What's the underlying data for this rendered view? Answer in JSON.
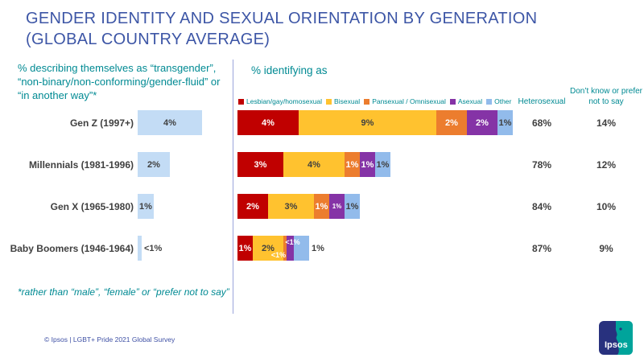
{
  "title": {
    "line1": "GENDER IDENTITY AND SEXUAL ORIENTATION BY GENERATION",
    "line2": "(GLOBAL COUNTRY AVERAGE)"
  },
  "left_chart": {
    "heading": "% describing themselves as “transgender”, “non-binary/non-conforming/gender-fluid” or “in another way”*",
    "footnote": "*rather than “male”, “female” or “prefer not to say”"
  },
  "right_chart": {
    "heading": "% identifying as",
    "series": [
      {
        "key": "lgh",
        "name": "Lesbian/gay/homosexual",
        "color": "#C00000"
      },
      {
        "key": "bi",
        "name": "Bisexual",
        "color": "#FFC22F"
      },
      {
        "key": "pan",
        "name": "Pansexual / Omnisexual",
        "color": "#EC7D2E"
      },
      {
        "key": "ace",
        "name": "Asexual",
        "color": "#8533A6"
      },
      {
        "key": "other",
        "name": "Other",
        "color": "#92BBEB"
      }
    ],
    "columns": [
      {
        "header": "Heterosexual"
      },
      {
        "header": "Don’t know or prefer not to say"
      }
    ],
    "rows": [
      {
        "name": "Gen Z (1997+)",
        "trans_pct": 4,
        "trans_label": "4%",
        "trans_label_outside": false,
        "segments": [
          {
            "series": "lgh",
            "value": 4,
            "label": "4%",
            "text": "light"
          },
          {
            "series": "bi",
            "value": 9,
            "label": "9%",
            "text": "dark"
          },
          {
            "series": "pan",
            "value": 2,
            "label": "2%",
            "text": "light"
          },
          {
            "series": "ace",
            "value": 2,
            "label": "2%",
            "text": "light"
          },
          {
            "series": "other",
            "value": 1,
            "label": "1%",
            "text": "dark"
          }
        ],
        "heterosexual": "68%",
        "dont_know": "14%"
      },
      {
        "name": "Millennials (1981-1996)",
        "trans_pct": 2,
        "trans_label": "2%",
        "trans_label_outside": false,
        "segments": [
          {
            "series": "lgh",
            "value": 3,
            "label": "3%",
            "text": "light"
          },
          {
            "series": "bi",
            "value": 4,
            "label": "4%",
            "text": "dark"
          },
          {
            "series": "pan",
            "value": 1,
            "label": "1%",
            "text": "light"
          },
          {
            "series": "ace",
            "value": 1,
            "label": "1%",
            "text": "light"
          },
          {
            "series": "other",
            "value": 1,
            "label": "1%",
            "text": "dark"
          }
        ],
        "heterosexual": "78%",
        "dont_know": "12%"
      },
      {
        "name": "Gen X (1965-1980)",
        "trans_pct": 1,
        "trans_label": "1%",
        "trans_label_outside": false,
        "segments": [
          {
            "series": "lgh",
            "value": 2,
            "label": "2%",
            "text": "light"
          },
          {
            "series": "bi",
            "value": 3,
            "label": "3%",
            "text": "dark"
          },
          {
            "series": "pan",
            "value": 1,
            "label": "1%",
            "text": "light"
          },
          {
            "series": "ace",
            "value": 1,
            "label": "1%",
            "text": "light",
            "size": 8
          },
          {
            "series": "other",
            "value": 1,
            "label": "1%",
            "text": "dark"
          }
        ],
        "heterosexual": "84%",
        "dont_know": "10%"
      },
      {
        "name": "Baby Boomers (1946-1964)",
        "trans_pct": 0.25,
        "trans_label": "<1%",
        "trans_label_outside": true,
        "segments": [
          {
            "series": "lgh",
            "value": 1,
            "label": "1%",
            "text": "light"
          },
          {
            "series": "bi",
            "value": 2,
            "label": "2%",
            "text": "dark"
          },
          {
            "series": "pan",
            "value": 0.5,
            "label": "<1%",
            "text": "light",
            "size": 9,
            "dx": -8,
            "dy": 8,
            "px": 4
          },
          {
            "series": "ace",
            "value": 0.5,
            "label": "<1%",
            "text": "light",
            "size": 9,
            "dx": 3,
            "dy": -8,
            "px": 9
          },
          {
            "series": "other",
            "value": 1,
            "label": "1%",
            "text": "dark",
            "outside": true
          }
        ],
        "heterosexual": "87%",
        "dont_know": "9%"
      }
    ]
  },
  "footer": {
    "copyright": "© Ipsos | LGBT+ Pride 2021 Global Survey",
    "logo_text": "Ipsos"
  },
  "colors": {
    "title_blue": "#3D56A6",
    "teal": "#008A93",
    "text_dark": "#404040",
    "trans_bar": "#C3DCF5",
    "divider": "#9AA5DB",
    "footer_blue": "#3F51A5",
    "logo_navy": "#28317E",
    "logo_teal": "#00A49B"
  },
  "chart_data": [
    {
      "type": "bar",
      "orientation": "horizontal",
      "title": "% describing themselves as “transgender”, “non-binary/non-conforming/gender-fluid” or “in another way”*",
      "categories": [
        "Gen Z (1997+)",
        "Millennials (1981-1996)",
        "Gen X (1965-1980)",
        "Baby Boomers (1946-1964)"
      ],
      "values": [
        4,
        2,
        1,
        "<1"
      ],
      "data_labels": [
        "4%",
        "2%",
        "1%",
        "<1%"
      ],
      "unit": "%",
      "bar_color": "#C3DCF5",
      "footnote": "*rather than “male”, “female” or “prefer not to say”"
    },
    {
      "type": "bar",
      "stacked": true,
      "orientation": "horizontal",
      "title": "% identifying as",
      "legend_position": "top",
      "categories": [
        "Gen Z (1997+)",
        "Millennials (1981-1996)",
        "Gen X (1965-1980)",
        "Baby Boomers (1946-1964)"
      ],
      "series": [
        {
          "name": "Lesbian/gay/homosexual",
          "color": "#C00000",
          "values": [
            4,
            3,
            2,
            1
          ]
        },
        {
          "name": "Bisexual",
          "color": "#FFC22F",
          "values": [
            9,
            4,
            3,
            2
          ]
        },
        {
          "name": "Pansexual / Omnisexual",
          "color": "#EC7D2E",
          "values": [
            2,
            1,
            1,
            "<1"
          ]
        },
        {
          "name": "Asexual",
          "color": "#8533A6",
          "values": [
            2,
            1,
            1,
            "<1"
          ]
        },
        {
          "name": "Other",
          "color": "#92BBEB",
          "values": [
            1,
            1,
            1,
            1
          ]
        },
        {
          "name": "Heterosexual",
          "values": [
            68,
            78,
            84,
            87
          ]
        },
        {
          "name": "Don’t know or prefer not to say",
          "values": [
            14,
            12,
            10,
            9
          ]
        }
      ],
      "unit": "%"
    }
  ]
}
